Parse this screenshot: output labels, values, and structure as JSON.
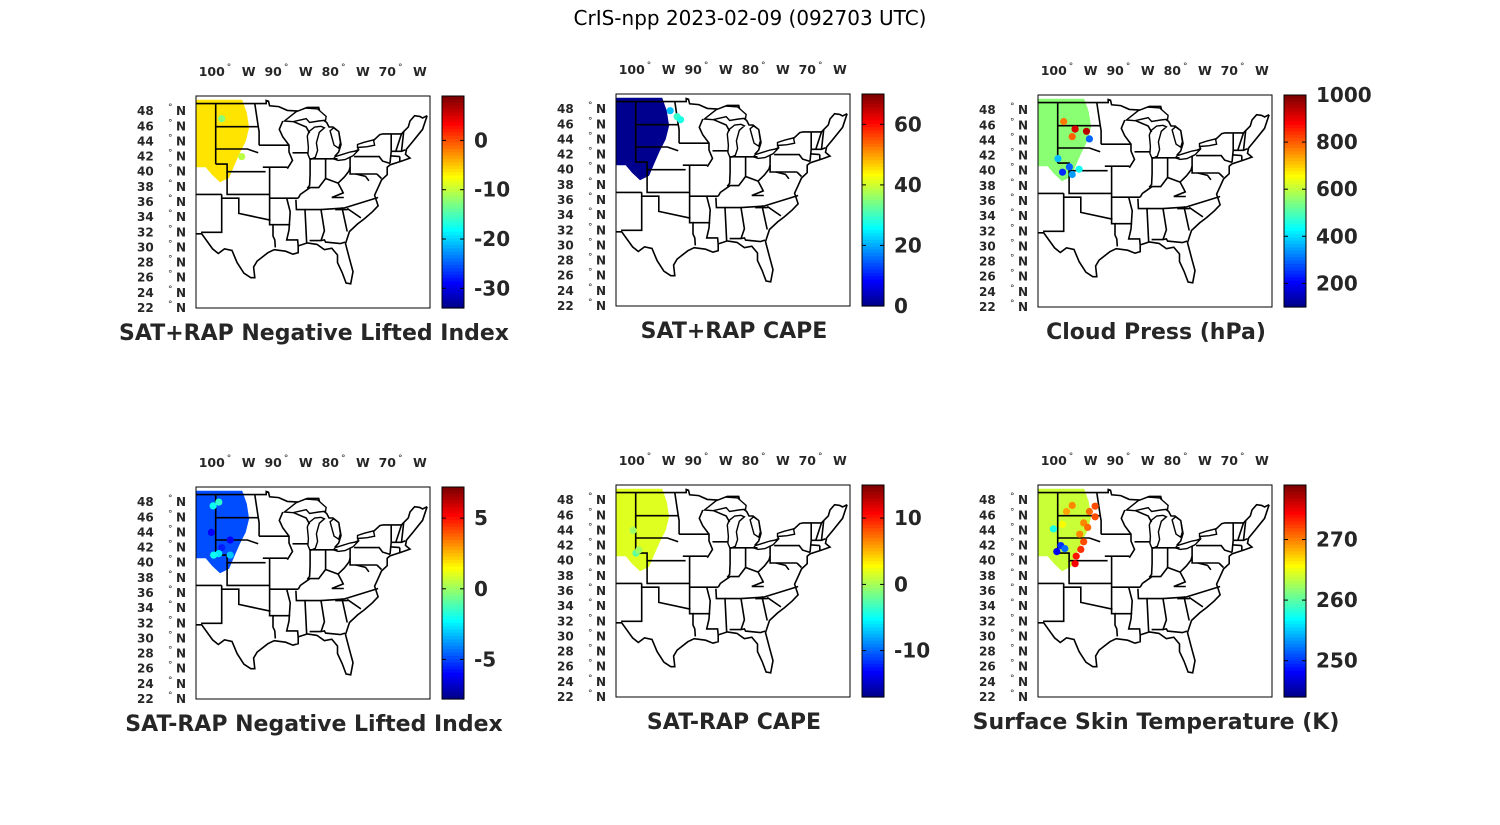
{
  "figure_title": "CrIS-npp 2023-02-09 (092703 UTC)",
  "longitude_ticks": [
    "100",
    "90",
    "80",
    "70"
  ],
  "longitude_hemisphere": "W",
  "latitude_ticks": [
    "48",
    "46",
    "44",
    "42",
    "40",
    "38",
    "36",
    "34",
    "32",
    "30",
    "28",
    "26",
    "24",
    "22"
  ],
  "latitude_hemisphere": "N",
  "degree_symbol": "°",
  "colormap": [
    "#00007f",
    "#0000ff",
    "#007fff",
    "#00ffff",
    "#7fff7f",
    "#ffff00",
    "#ff7f00",
    "#ff0000",
    "#7f0000"
  ],
  "outline_color": "#000000",
  "panels": [
    {
      "title": "SAT+RAP Negative Lifted Index",
      "colorbar": {
        "min": -34,
        "max": 9,
        "ticks": [
          0,
          -10,
          -20,
          -30
        ]
      },
      "swath_color_value": -6,
      "scatter": [
        {
          "lon": -99.5,
          "lat": 42,
          "v": -10
        },
        {
          "lon": -103,
          "lat": 47,
          "v": -12
        }
      ]
    },
    {
      "title": "SAT+RAP CAPE",
      "colorbar": {
        "min": 0,
        "max": 70,
        "ticks": [
          60,
          40,
          20,
          0
        ]
      },
      "swath_color_value": 1,
      "scatter": [
        {
          "lon": -96.8,
          "lat": 47,
          "v": 30
        },
        {
          "lon": -96.2,
          "lat": 46.6,
          "v": 28
        },
        {
          "lon": -98,
          "lat": 47.8,
          "v": 22
        }
      ]
    },
    {
      "title": "Cloud Press (hPa)",
      "colorbar": {
        "min": 100,
        "max": 1000,
        "ticks": [
          1000,
          800,
          600,
          400,
          200
        ]
      },
      "swath_color_value": 560,
      "scatter": [
        {
          "lon": -101,
          "lat": 45.5,
          "v": 920
        },
        {
          "lon": -99,
          "lat": 45.2,
          "v": 950
        },
        {
          "lon": -101.5,
          "lat": 44.5,
          "v": 800
        },
        {
          "lon": -103,
          "lat": 46.5,
          "v": 780
        },
        {
          "lon": -98.5,
          "lat": 44.2,
          "v": 300
        },
        {
          "lon": -102,
          "lat": 40.5,
          "v": 300
        },
        {
          "lon": -103.2,
          "lat": 39.8,
          "v": 250
        },
        {
          "lon": -101.5,
          "lat": 39.5,
          "v": 350
        },
        {
          "lon": -104,
          "lat": 41.6,
          "v": 380
        },
        {
          "lon": -100.3,
          "lat": 40.2,
          "v": 450
        }
      ]
    },
    {
      "title": "SAT-RAP Negative Lifted Index",
      "colorbar": {
        "min": -7.8,
        "max": 7.2,
        "ticks": [
          5,
          0,
          -5
        ]
      },
      "swath_color_value": -4.8,
      "scatter": [
        {
          "lon": -104.5,
          "lat": 47.5,
          "v": -2
        },
        {
          "lon": -103.5,
          "lat": 48,
          "v": -1.5
        },
        {
          "lon": -104.8,
          "lat": 44,
          "v": -6
        },
        {
          "lon": -103,
          "lat": 42,
          "v": -5.5
        },
        {
          "lon": -101.5,
          "lat": 41,
          "v": -3
        },
        {
          "lon": -103.5,
          "lat": 41.2,
          "v": -2.5
        },
        {
          "lon": -104.4,
          "lat": 41,
          "v": -2
        },
        {
          "lon": -101.5,
          "lat": 43,
          "v": -6
        }
      ]
    },
    {
      "title": "SAT-RAP CAPE",
      "colorbar": {
        "min": -17,
        "max": 15,
        "ticks": [
          10,
          0,
          -10
        ]
      },
      "swath_color_value": 2,
      "scatter": [
        {
          "lon": -104.5,
          "lat": 44,
          "v": 0
        },
        {
          "lon": -104,
          "lat": 41,
          "v": -2
        },
        {
          "lon": -103.5,
          "lat": 41.4,
          "v": 0
        }
      ]
    },
    {
      "title": "Surface Skin Temperature (K)",
      "colorbar": {
        "min": 244,
        "max": 279,
        "ticks": [
          270,
          260,
          250
        ]
      },
      "swath_color_value": 264,
      "scatter": [
        {
          "lon": -98.5,
          "lat": 46.5,
          "v": 271
        },
        {
          "lon": -97.5,
          "lat": 45.8,
          "v": 272
        },
        {
          "lon": -99.5,
          "lat": 45,
          "v": 270
        },
        {
          "lon": -98.8,
          "lat": 44.4,
          "v": 271
        },
        {
          "lon": -100.2,
          "lat": 43.5,
          "v": 270
        },
        {
          "lon": -99.5,
          "lat": 42.5,
          "v": 272
        },
        {
          "lon": -100,
          "lat": 41.5,
          "v": 273
        },
        {
          "lon": -100.8,
          "lat": 40.6,
          "v": 274
        },
        {
          "lon": -101,
          "lat": 39.6,
          "v": 275
        },
        {
          "lon": -97.5,
          "lat": 47.2,
          "v": 272
        },
        {
          "lon": -101.5,
          "lat": 47.3,
          "v": 270
        },
        {
          "lon": -102.5,
          "lat": 46.5,
          "v": 269
        },
        {
          "lon": -103.2,
          "lat": 44.8,
          "v": 266
        },
        {
          "lon": -103.5,
          "lat": 42,
          "v": 250
        },
        {
          "lon": -104.2,
          "lat": 41.2,
          "v": 248
        },
        {
          "lon": -102.8,
          "lat": 41.6,
          "v": 252
        },
        {
          "lon": -104.8,
          "lat": 44.2,
          "v": 258
        }
      ]
    }
  ]
}
